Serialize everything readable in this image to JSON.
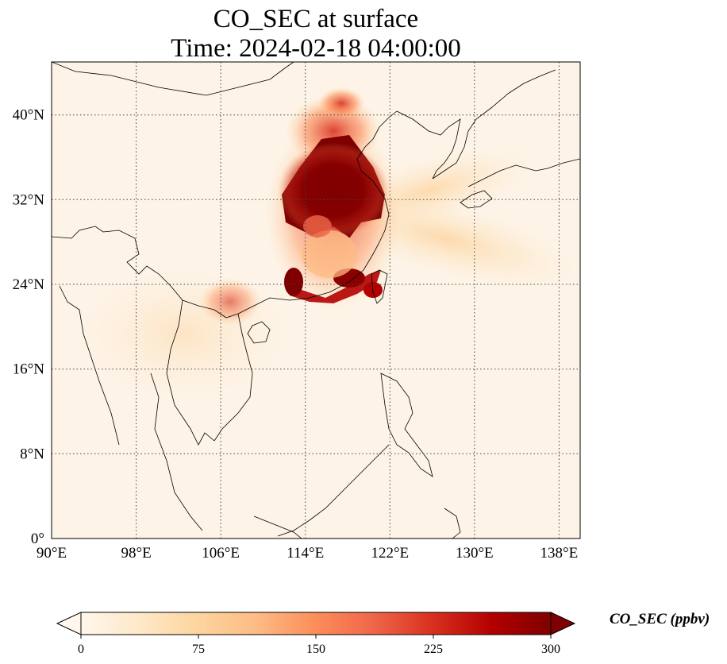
{
  "title_line1": "CO_SEC at surface",
  "title_line2": "Time: 2024-02-18 04:00:00",
  "map": {
    "lon_range": [
      90,
      140
    ],
    "lat_range": [
      0,
      45
    ],
    "lon_ticks": [
      "90°E",
      "98°E",
      "106°E",
      "114°E",
      "122°E",
      "130°E",
      "138°E"
    ],
    "lat_ticks": [
      "0°",
      "8°N",
      "16°N",
      "24°N",
      "32°N",
      "40°N"
    ],
    "gridlines": true,
    "field_description": "CO_SEC concentration field, highest over eastern China"
  },
  "colorbar": {
    "label": "CO_SEC (ppbv)",
    "ticks": [
      "0",
      "75",
      "150",
      "225",
      "300"
    ],
    "range": [
      0,
      300
    ],
    "extend": "both",
    "colormap": "OrRd",
    "colors": [
      "#fff7ec",
      "#fee8c8",
      "#fdd49e",
      "#fdbb84",
      "#fc8d59",
      "#ef6548",
      "#d7301f",
      "#b30000",
      "#7f0000"
    ]
  }
}
